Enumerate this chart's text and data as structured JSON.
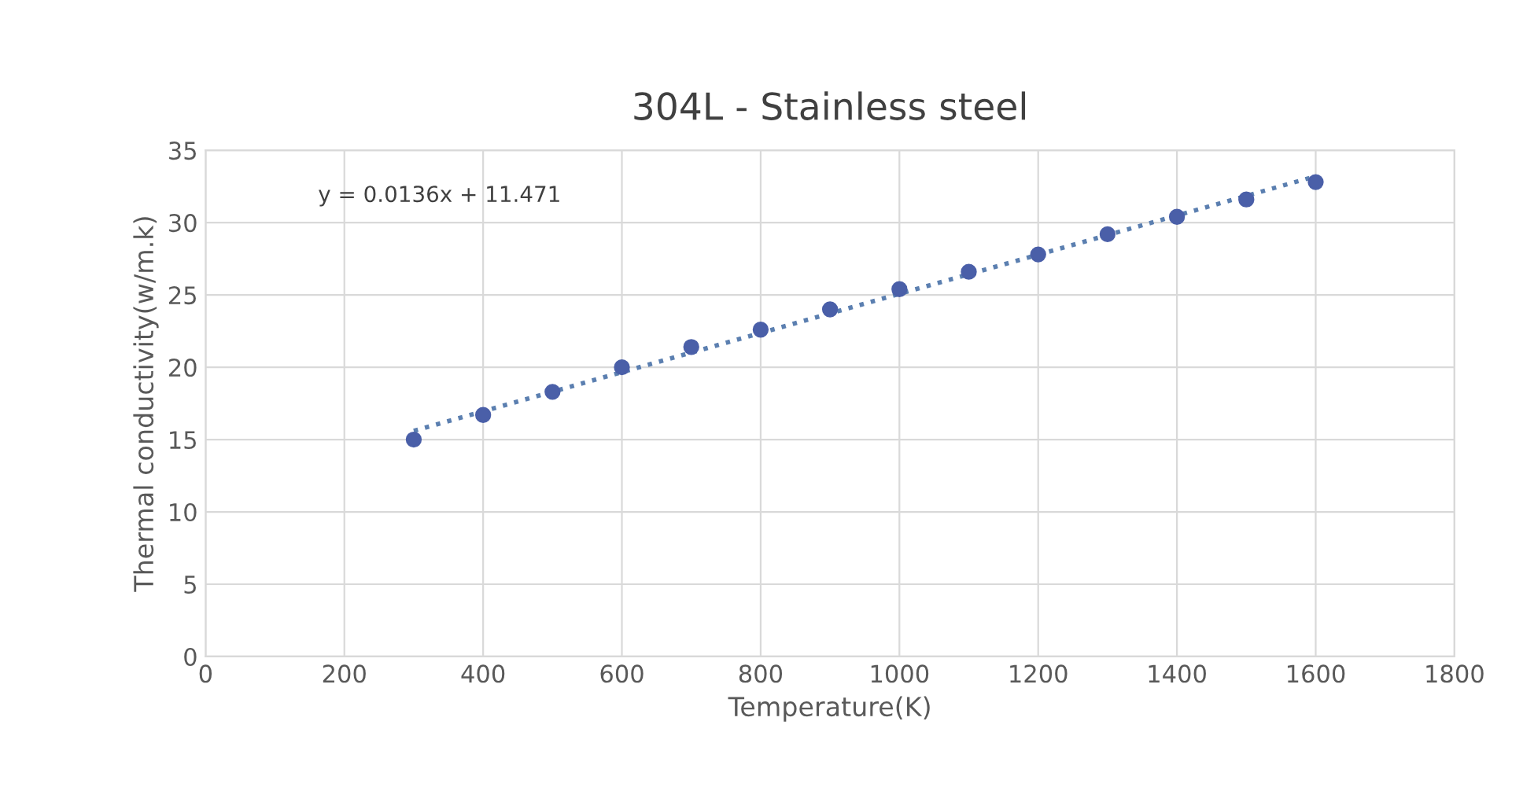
{
  "chart_data": {
    "type": "scatter",
    "title": "304L - Stainless steel",
    "xlabel": "Temperature(K)",
    "ylabel": "Thermal conductivity(w/m.k)",
    "x": [
      300,
      400,
      500,
      600,
      700,
      800,
      900,
      1000,
      1100,
      1200,
      1300,
      1400,
      1500,
      1600
    ],
    "series": [
      {
        "color": "#4a5fa8",
        "marker": "circle",
        "values": [
          15.0,
          16.7,
          18.3,
          20.0,
          21.4,
          22.6,
          24.0,
          25.4,
          26.6,
          27.8,
          29.2,
          30.4,
          31.6,
          32.8
        ]
      },
      {
        "type": "line",
        "color": "#5b7fb0",
        "marker": "none",
        "line_style": "dotted",
        "x": [
          300,
          1600
        ],
        "values": [
          15.6,
          33.2
        ]
      }
    ],
    "annotations": [
      "y = 0.0136x + 11.471"
    ],
    "xlim": [
      0,
      1800
    ],
    "xticks": [
      0,
      200,
      400,
      600,
      800,
      1000,
      1200,
      1400,
      1600,
      1800
    ],
    "ylim": [
      0,
      35
    ],
    "yticks": [
      0,
      5,
      10,
      15,
      20,
      25,
      30,
      35
    ],
    "grid": true,
    "legend": false
  }
}
